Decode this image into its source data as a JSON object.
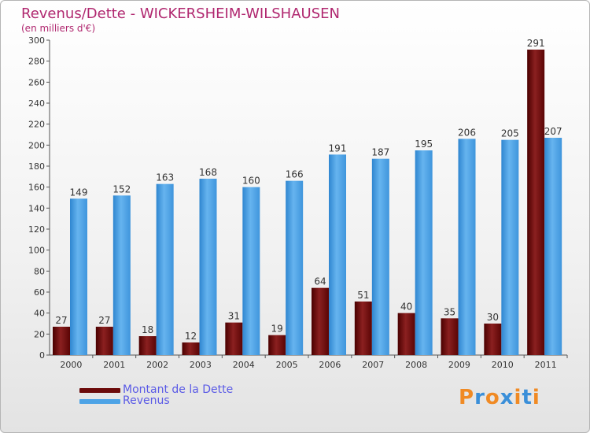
{
  "title": "Revenus/Dette - WICKERSHEIM-WILSHAUSEN",
  "subtitle": "(en milliers d'€)",
  "legend": [
    {
      "label": "Montant de la Dette",
      "color": "#6b0a0a"
    },
    {
      "label": "Revenus",
      "color": "#4da3e6"
    }
  ],
  "logo": {
    "text": "Proxiti",
    "colors": [
      "#f08a24",
      "#3a8fd9",
      "#f08a24",
      "#3a8fd9",
      "#f08a24",
      "#3a8fd9",
      "#f08a24"
    ]
  },
  "chart_data": {
    "type": "bar",
    "categories": [
      "2000",
      "2001",
      "2002",
      "2003",
      "2004",
      "2005",
      "2006",
      "2007",
      "2008",
      "2009",
      "2010",
      "2011"
    ],
    "series": [
      {
        "name": "Montant de la Dette",
        "values": [
          27,
          27,
          18,
          12,
          31,
          19,
          64,
          51,
          40,
          35,
          30,
          291
        ],
        "color": "#6b0a0a"
      },
      {
        "name": "Revenus",
        "values": [
          149,
          152,
          163,
          168,
          160,
          166,
          191,
          187,
          195,
          206,
          205,
          207
        ],
        "color": "#4da3e6"
      }
    ],
    "ylim": [
      0,
      300
    ],
    "yticks": [
      0,
      20,
      40,
      60,
      80,
      100,
      120,
      140,
      160,
      180,
      200,
      220,
      240,
      260,
      280,
      300
    ],
    "grid": false
  }
}
